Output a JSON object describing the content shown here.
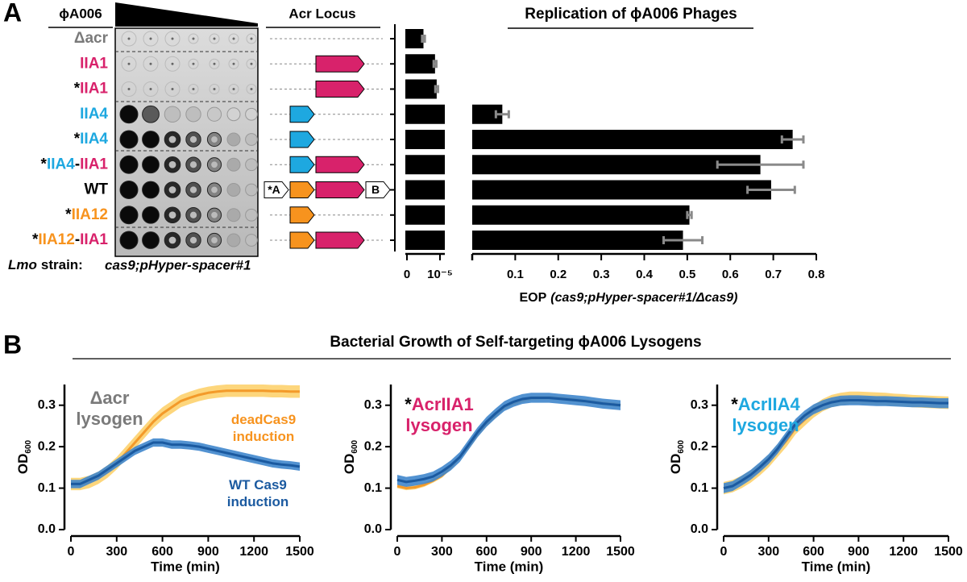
{
  "panel_labels": [
    "A",
    "B"
  ],
  "plaque_assay": {
    "title": "ϕA006",
    "strain_label": [
      {
        "text": "Lmo",
        "italic": true
      },
      {
        "text": "strain:"
      }
    ],
    "genotype": "cas9;pHyper-spacer#1"
  },
  "strains": [
    {
      "parts": [
        {
          "text": "Δacr",
          "color": "#7a7a7a"
        }
      ]
    },
    {
      "parts": [
        {
          "text": "IIA1",
          "color": "#d8226b"
        }
      ]
    },
    {
      "parts": [
        {
          "text": "*",
          "color": "#000000"
        },
        {
          "text": "IIA1",
          "color": "#d8226b"
        }
      ]
    },
    {
      "parts": [
        {
          "text": "IIA4",
          "color": "#1ea8e0"
        }
      ]
    },
    {
      "parts": [
        {
          "text": "*",
          "color": "#000000"
        },
        {
          "text": "IIA4",
          "color": "#1ea8e0"
        }
      ]
    },
    {
      "parts": [
        {
          "text": "*",
          "color": "#000000"
        },
        {
          "text": "IIA4",
          "color": "#1ea8e0"
        },
        {
          "text": "-",
          "color": "#000000"
        },
        {
          "text": "IIA1",
          "color": "#d8226b"
        }
      ]
    },
    {
      "parts": [
        {
          "text": "WT",
          "color": "#000000"
        }
      ]
    },
    {
      "parts": [
        {
          "text": "*",
          "color": "#000000"
        },
        {
          "text": "IIA12",
          "color": "#f7931e"
        }
      ]
    },
    {
      "parts": [
        {
          "text": "*",
          "color": "#000000"
        },
        {
          "text": "IIA12",
          "color": "#f7931e"
        },
        {
          "text": "-",
          "color": "#000000"
        },
        {
          "text": "IIA1",
          "color": "#d8226b"
        }
      ]
    }
  ],
  "acr_locus": {
    "title": "Acr Locus",
    "rows": [
      [],
      [
        {
          "color": "#d8226b"
        }
      ],
      [
        {
          "color": "#d8226b"
        }
      ],
      [
        {
          "color": "#1ea8e0"
        }
      ],
      [
        {
          "color": "#1ea8e0"
        }
      ],
      [
        {
          "color": "#1ea8e0"
        },
        {
          "color": "#d8226b"
        }
      ],
      [
        {
          "label": "*A"
        },
        {
          "color": "#f7931e"
        },
        {
          "color": "#d8226b"
        },
        {
          "label": "B"
        }
      ],
      [
        {
          "color": "#f7931e"
        }
      ],
      [
        {
          "color": "#f7931e"
        },
        {
          "color": "#d8226b"
        }
      ]
    ]
  },
  "panel_b": {
    "title": "Bacterial Growth of Self-targeting ϕA006 Lysogens"
  },
  "chart_data": [
    {
      "type": "bar",
      "orientation": "horizontal",
      "title": "Replication of ϕA006 Phages",
      "xlabel": [
        {
          "text": "EOP"
        },
        {
          "text": "(cas9;pHyper-spacer#1/Δcas9)",
          "italic": true
        }
      ],
      "values": [
        5e-06,
        8.5e-06,
        9e-06,
        0.07,
        0.745,
        0.67,
        0.695,
        0.505,
        0.49
      ],
      "errors": [
        4e-07,
        4e-07,
        4e-07,
        0.015,
        0.025,
        0.1,
        0.055,
        0.005,
        0.045
      ],
      "color": "#000000",
      "error_color": "#8a8a8a",
      "segments": [
        {
          "xlim": [
            0,
            1e-05
          ],
          "xticks": [
            0,
            {
              "value": 1e-05,
              "label": "10⁻⁵"
            }
          ]
        },
        {
          "xlim": [
            0,
            0.8
          ],
          "xticks": [
            0.1,
            0.2,
            0.3,
            0.4,
            0.5,
            0.6,
            0.7,
            0.8
          ]
        }
      ]
    },
    {
      "type": "line",
      "xlabel": "Time (min)",
      "ylabel": [
        {
          "text": "OD"
        },
        {
          "text": "600",
          "sub": true
        }
      ],
      "annotations": [
        [
          {
            "text": "Δacr",
            "color": "#7a7a7a"
          }
        ],
        [
          {
            "text": "lysogen",
            "color": "#7a7a7a"
          }
        ],
        [
          {
            "text": "deadCas9",
            "color": "#f7931e"
          }
        ],
        [
          {
            "text": "induction",
            "color": "#f7931e"
          }
        ],
        [
          {
            "text": "WT Cas9",
            "color": "#1b5aa0"
          }
        ],
        [
          {
            "text": "induction",
            "color": "#1b5aa0"
          }
        ]
      ],
      "x": [
        0,
        60,
        120,
        180,
        240,
        300,
        360,
        420,
        480,
        540,
        600,
        660,
        720,
        780,
        840,
        900,
        960,
        1020,
        1080,
        1140,
        1200,
        1260,
        1320,
        1380,
        1440,
        1500
      ],
      "series": [
        {
          "color": "#f39a2a",
          "band_color": "#fdd26e",
          "band": 0.015,
          "values": [
            0.11,
            0.11,
            0.115,
            0.125,
            0.14,
            0.16,
            0.185,
            0.21,
            0.235,
            0.26,
            0.28,
            0.295,
            0.31,
            0.318,
            0.325,
            0.33,
            0.333,
            0.335,
            0.335,
            0.335,
            0.335,
            0.335,
            0.334,
            0.334,
            0.333,
            0.333
          ]
        },
        {
          "color": "#1b5aa0",
          "band_color": "#3f86cc",
          "band": 0.01,
          "values": [
            0.11,
            0.11,
            0.12,
            0.13,
            0.145,
            0.16,
            0.175,
            0.19,
            0.2,
            0.21,
            0.21,
            0.205,
            0.205,
            0.203,
            0.2,
            0.195,
            0.19,
            0.185,
            0.18,
            0.175,
            0.17,
            0.165,
            0.16,
            0.157,
            0.155,
            0.152
          ]
        }
      ],
      "xlim": [
        0,
        1500
      ],
      "xticks": [
        0,
        300,
        600,
        900,
        1200,
        1500
      ],
      "ylim": [
        0,
        0.35
      ],
      "yticks": [
        {
          "value": 0,
          "label": "0.0"
        },
        0.1,
        0.2,
        0.3
      ]
    },
    {
      "type": "line",
      "xlabel": "Time (min)",
      "ylabel": [
        {
          "text": "OD"
        },
        {
          "text": "600",
          "sub": true
        }
      ],
      "annotations": [
        [
          {
            "text": "*",
            "color": "#000000"
          },
          {
            "text": "AcrIIA1",
            "color": "#d8226b"
          }
        ],
        [
          {
            "text": "lysogen",
            "color": "#d8226b"
          }
        ]
      ],
      "x": [
        0,
        60,
        120,
        180,
        240,
        300,
        360,
        420,
        480,
        540,
        600,
        660,
        720,
        780,
        840,
        900,
        960,
        1020,
        1080,
        1140,
        1200,
        1260,
        1320,
        1380,
        1440,
        1500
      ],
      "series": [
        {
          "color": "#f39a2a",
          "band_color": "#fdd26e",
          "band": 0.005,
          "values": [
            0.105,
            0.1,
            0.102,
            0.108,
            0.118,
            0.13,
            0.15,
            0.175,
            0.2,
            0.23,
            0.255,
            0.275,
            0.295,
            0.305,
            0.312,
            0.317,
            0.318,
            0.318,
            0.317,
            0.315,
            0.313,
            0.31,
            0.308,
            0.305,
            0.303,
            0.3
          ]
        },
        {
          "color": "#1b5aa0",
          "band_color": "#3f86cc",
          "band": 0.012,
          "values": [
            0.12,
            0.115,
            0.118,
            0.122,
            0.128,
            0.14,
            0.155,
            0.175,
            0.205,
            0.235,
            0.26,
            0.28,
            0.298,
            0.308,
            0.315,
            0.318,
            0.318,
            0.318,
            0.316,
            0.314,
            0.312,
            0.31,
            0.307,
            0.304,
            0.302,
            0.3
          ]
        }
      ],
      "xlim": [
        0,
        1500
      ],
      "xticks": [
        0,
        300,
        600,
        900,
        1200,
        1500
      ],
      "ylim": [
        0,
        0.35
      ],
      "yticks": [
        {
          "value": 0,
          "label": "0.0"
        },
        0.1,
        0.2,
        0.3
      ]
    },
    {
      "type": "line",
      "xlabel": "Time (min)",
      "ylabel": [
        {
          "text": "OD"
        },
        {
          "text": "600",
          "sub": true
        }
      ],
      "annotations": [
        [
          {
            "text": "*",
            "color": "#000000"
          },
          {
            "text": "AcrIIA4",
            "color": "#1ea8e0"
          }
        ],
        [
          {
            "text": "lysogen",
            "color": "#1ea8e0"
          }
        ]
      ],
      "x": [
        0,
        60,
        120,
        180,
        240,
        300,
        360,
        420,
        480,
        540,
        600,
        660,
        720,
        780,
        840,
        900,
        960,
        1020,
        1080,
        1140,
        1200,
        1260,
        1320,
        1380,
        1440,
        1500
      ],
      "series": [
        {
          "color": "#f39a2a",
          "band_color": "#fdd26e",
          "band": 0.015,
          "values": [
            0.1,
            0.105,
            0.115,
            0.128,
            0.145,
            0.165,
            0.19,
            0.215,
            0.245,
            0.265,
            0.285,
            0.3,
            0.31,
            0.315,
            0.318,
            0.318,
            0.317,
            0.316,
            0.315,
            0.313,
            0.312,
            0.31,
            0.309,
            0.308,
            0.307,
            0.306
          ]
        },
        {
          "color": "#1b5aa0",
          "band_color": "#3f86cc",
          "band": 0.012,
          "values": [
            0.1,
            0.105,
            0.118,
            0.132,
            0.15,
            0.17,
            0.195,
            0.225,
            0.255,
            0.275,
            0.29,
            0.3,
            0.307,
            0.311,
            0.312,
            0.312,
            0.311,
            0.31,
            0.31,
            0.309,
            0.308,
            0.307,
            0.307,
            0.306,
            0.305,
            0.305
          ]
        }
      ],
      "xlim": [
        0,
        1500
      ],
      "xticks": [
        0,
        300,
        600,
        900,
        1200,
        1500
      ],
      "ylim": [
        0,
        0.35
      ],
      "yticks": [
        {
          "value": 0,
          "label": "0.0"
        },
        0.1,
        0.2,
        0.3
      ]
    }
  ]
}
